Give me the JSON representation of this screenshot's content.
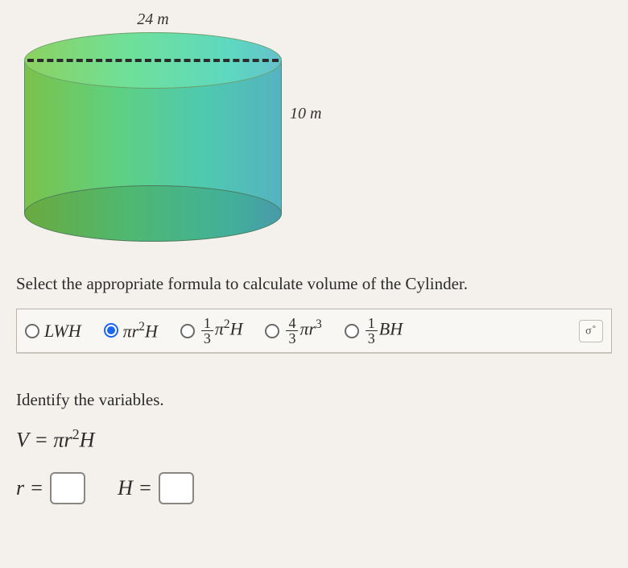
{
  "figure": {
    "diameter_label": "24 m",
    "height_label": "10 m",
    "colors": {
      "gradient_start": "#7bc24a",
      "gradient_end": "#55b3c0",
      "dash": "#2b2b2b"
    }
  },
  "prompt": "Select the appropriate formula to calculate volume of the Cylinder.",
  "choices": [
    {
      "key": "lwh",
      "html": "LWH",
      "selected": false
    },
    {
      "key": "pir2h",
      "html": "πr²H",
      "selected": true
    },
    {
      "key": "third_pi2h",
      "html": "(1/3)π²H",
      "selected": false
    },
    {
      "key": "fourthird_pir3",
      "html": "(4/3)πr³",
      "selected": false
    },
    {
      "key": "third_bh",
      "html": "(1/3)BH",
      "selected": false
    }
  ],
  "identify": {
    "heading": "Identify the variables.",
    "formula_label": "V = πr²H",
    "r_label": "r =",
    "H_label": "H =",
    "r_value": "",
    "H_value": ""
  },
  "style": {
    "background": "#f4f1ed",
    "accent": "#1a66f0",
    "text": "#2b2b2b",
    "border": "#b8b4ae",
    "font_size_prompt": 21,
    "font_size_formula": 22
  }
}
